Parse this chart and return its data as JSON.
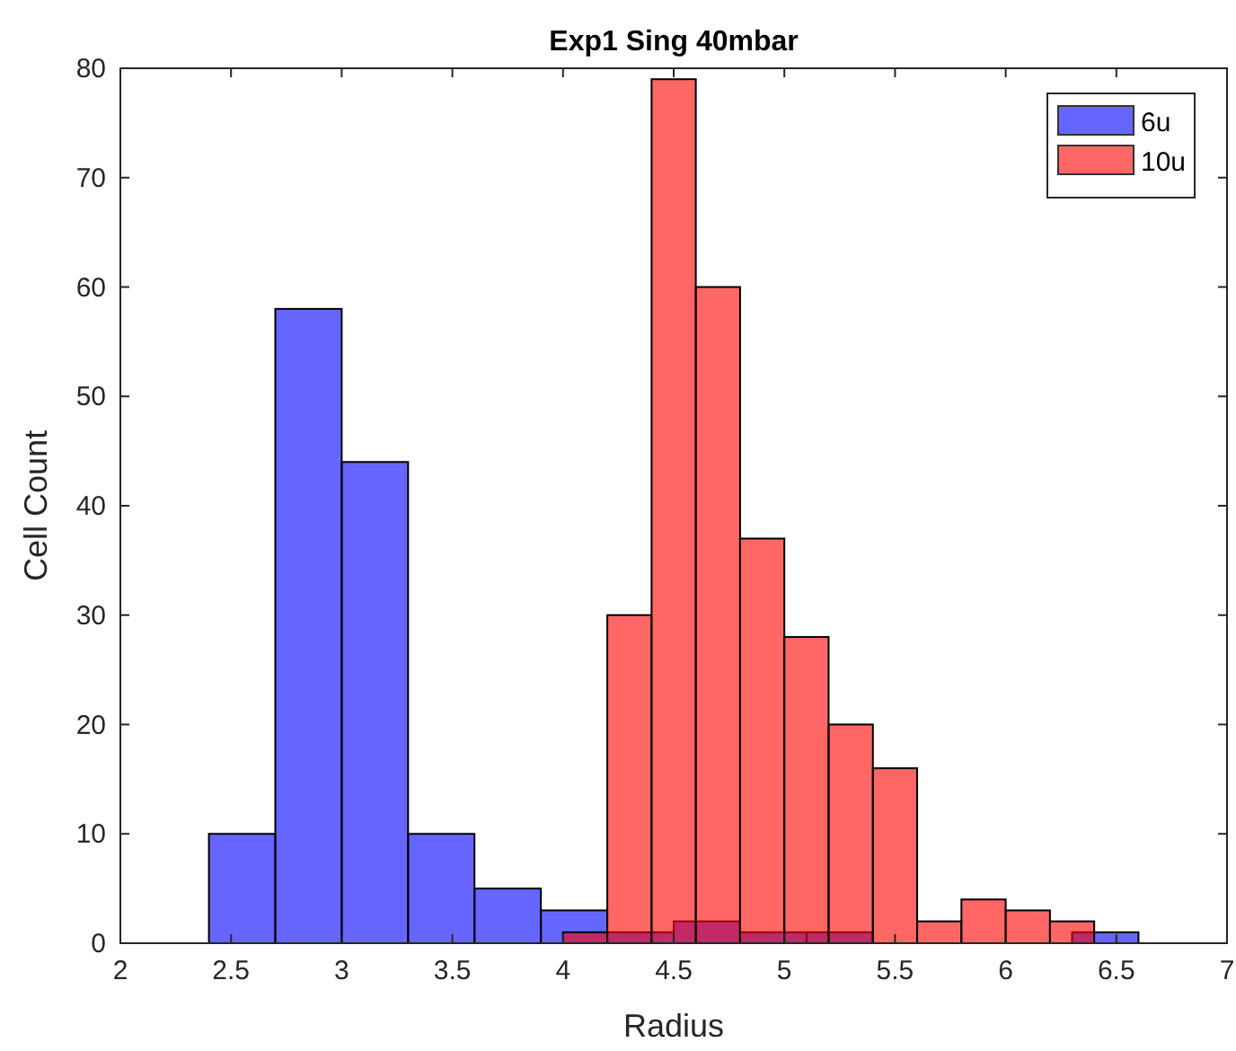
{
  "chart_data": {
    "type": "histogram",
    "title": "Exp1 Sing 40mbar",
    "xlabel": "Radius",
    "ylabel": "Cell Count",
    "xlim": [
      2,
      7
    ],
    "xticks": [
      2,
      2.5,
      3,
      3.5,
      4,
      4.5,
      5,
      5.5,
      6,
      6.5,
      7
    ],
    "ylim": [
      0,
      80
    ],
    "yticks": [
      0,
      10,
      20,
      30,
      40,
      50,
      60,
      70,
      80
    ],
    "legend": "top right",
    "grid": false,
    "bins": [
      2.4,
      2.7,
      3.0,
      3.3,
      3.6,
      3.9,
      4.2,
      4.5,
      4.8,
      5.1,
      5.4,
      5.7,
      6.0,
      6.3,
      6.6
    ],
    "series": [
      {
        "type": "histogram",
        "name": "6u",
        "color": "#0000ff",
        "values": [
          10,
          58,
          44,
          10,
          5,
          3,
          1,
          2,
          1,
          1,
          0,
          0,
          0,
          1
        ]
      },
      {
        "type": "histogram",
        "name": "10u",
        "color": "#ff0000",
        "bins": [
          4.0,
          4.2,
          4.4,
          4.6,
          4.8,
          5.0,
          5.2,
          5.4,
          5.6,
          5.8,
          6.0,
          6.2,
          6.4
        ],
        "values": [
          1,
          30,
          79,
          60,
          37,
          28,
          20,
          16,
          2,
          4,
          3,
          2
        ]
      }
    ]
  }
}
